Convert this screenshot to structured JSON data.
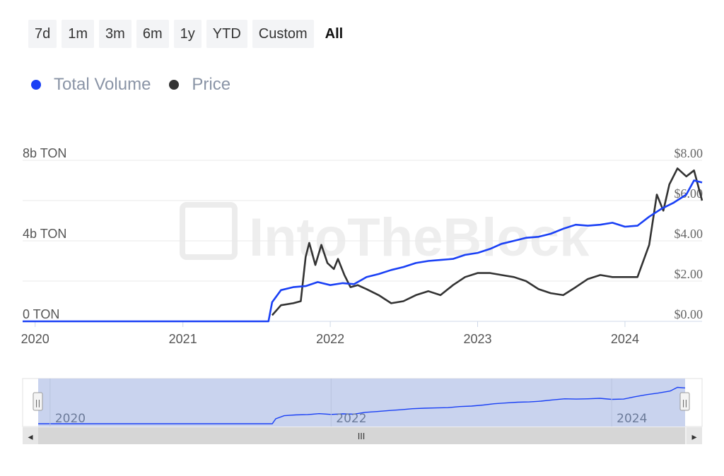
{
  "ranges": [
    "7d",
    "1m",
    "3m",
    "6m",
    "1y",
    "YTD",
    "Custom",
    "All"
  ],
  "active_range": "All",
  "watermark": "IntoTheBlock",
  "colors": {
    "volume": "#1a40f5",
    "price": "#333333",
    "navigator_fill": "#c9d3ee"
  },
  "chart_data": {
    "type": "line",
    "title": "",
    "legend": [
      "Total Volume",
      "Price"
    ],
    "legend_position": "top-left",
    "x_ticks": [
      "2020",
      "2021",
      "2022",
      "2023",
      "2024"
    ],
    "left_axis": {
      "ticks": [
        "0 TON",
        "4b TON",
        "8b TON"
      ],
      "range": [
        0,
        8000000000
      ]
    },
    "right_axis": {
      "ticks": [
        "$0.00",
        "$2.00",
        "$4.00",
        "$6.00",
        "$8.00"
      ],
      "range": [
        0,
        8
      ]
    },
    "grid": true,
    "series": [
      {
        "name": "Total Volume",
        "axis": "left",
        "unit": "TON",
        "points": [
          [
            "2019-12-01",
            0
          ],
          [
            "2021-08-01",
            0
          ],
          [
            "2021-08-10",
            950000000
          ],
          [
            "2021-09-01",
            1550000000
          ],
          [
            "2021-10-01",
            1700000000
          ],
          [
            "2021-11-01",
            1750000000
          ],
          [
            "2021-12-01",
            1950000000
          ],
          [
            "2022-01-01",
            1800000000
          ],
          [
            "2022-02-01",
            1900000000
          ],
          [
            "2022-03-01",
            1850000000
          ],
          [
            "2022-04-01",
            2200000000
          ],
          [
            "2022-05-01",
            2350000000
          ],
          [
            "2022-06-01",
            2550000000
          ],
          [
            "2022-07-01",
            2700000000
          ],
          [
            "2022-08-01",
            2900000000
          ],
          [
            "2022-09-01",
            3000000000
          ],
          [
            "2022-10-01",
            3050000000
          ],
          [
            "2022-11-01",
            3100000000
          ],
          [
            "2022-12-01",
            3300000000
          ],
          [
            "2023-01-01",
            3400000000
          ],
          [
            "2023-02-01",
            3600000000
          ],
          [
            "2023-03-01",
            3850000000
          ],
          [
            "2023-04-01",
            4000000000
          ],
          [
            "2023-05-01",
            4150000000
          ],
          [
            "2023-06-01",
            4200000000
          ],
          [
            "2023-07-01",
            4350000000
          ],
          [
            "2023-08-01",
            4600000000
          ],
          [
            "2023-09-01",
            4800000000
          ],
          [
            "2023-10-01",
            4750000000
          ],
          [
            "2023-11-01",
            4800000000
          ],
          [
            "2023-12-01",
            4900000000
          ],
          [
            "2024-01-01",
            4700000000
          ],
          [
            "2024-02-01",
            4750000000
          ],
          [
            "2024-03-01",
            5200000000
          ],
          [
            "2024-04-01",
            5600000000
          ],
          [
            "2024-05-01",
            5900000000
          ],
          [
            "2024-06-01",
            6300000000
          ],
          [
            "2024-06-20",
            7000000000
          ],
          [
            "2024-07-10",
            6900000000
          ]
        ]
      },
      {
        "name": "Price",
        "axis": "right",
        "unit": "$",
        "points": [
          [
            "2021-08-10",
            0.3
          ],
          [
            "2021-09-01",
            0.8
          ],
          [
            "2021-10-01",
            0.9
          ],
          [
            "2021-10-20",
            1.0
          ],
          [
            "2021-11-01",
            3.2
          ],
          [
            "2021-11-10",
            3.9
          ],
          [
            "2021-11-25",
            2.8
          ],
          [
            "2021-12-10",
            3.8
          ],
          [
            "2021-12-25",
            2.9
          ],
          [
            "2022-01-10",
            2.6
          ],
          [
            "2022-01-20",
            3.1
          ],
          [
            "2022-02-05",
            2.3
          ],
          [
            "2022-02-20",
            1.7
          ],
          [
            "2022-03-10",
            1.8
          ],
          [
            "2022-04-01",
            1.6
          ],
          [
            "2022-05-01",
            1.3
          ],
          [
            "2022-06-01",
            0.9
          ],
          [
            "2022-07-01",
            1.0
          ],
          [
            "2022-08-01",
            1.3
          ],
          [
            "2022-09-01",
            1.5
          ],
          [
            "2022-10-01",
            1.3
          ],
          [
            "2022-11-01",
            1.8
          ],
          [
            "2022-12-01",
            2.2
          ],
          [
            "2023-01-01",
            2.4
          ],
          [
            "2023-02-01",
            2.4
          ],
          [
            "2023-03-01",
            2.3
          ],
          [
            "2023-04-01",
            2.2
          ],
          [
            "2023-05-01",
            2.0
          ],
          [
            "2023-06-01",
            1.6
          ],
          [
            "2023-07-01",
            1.4
          ],
          [
            "2023-08-01",
            1.3
          ],
          [
            "2023-09-01",
            1.7
          ],
          [
            "2023-10-01",
            2.1
          ],
          [
            "2023-11-01",
            2.3
          ],
          [
            "2023-12-01",
            2.2
          ],
          [
            "2024-01-01",
            2.2
          ],
          [
            "2024-02-01",
            2.2
          ],
          [
            "2024-03-01",
            3.8
          ],
          [
            "2024-03-20",
            6.3
          ],
          [
            "2024-04-05",
            5.5
          ],
          [
            "2024-04-20",
            6.8
          ],
          [
            "2024-05-10",
            7.6
          ],
          [
            "2024-06-01",
            7.2
          ],
          [
            "2024-06-20",
            7.5
          ],
          [
            "2024-07-10",
            6.0
          ]
        ]
      }
    ]
  },
  "navigator": {
    "labels": [
      "2020",
      "2022",
      "2024"
    ],
    "scroll_thumb": "III",
    "left_arrow": "◂",
    "right_arrow": "▸",
    "handle_glyph": "||"
  }
}
